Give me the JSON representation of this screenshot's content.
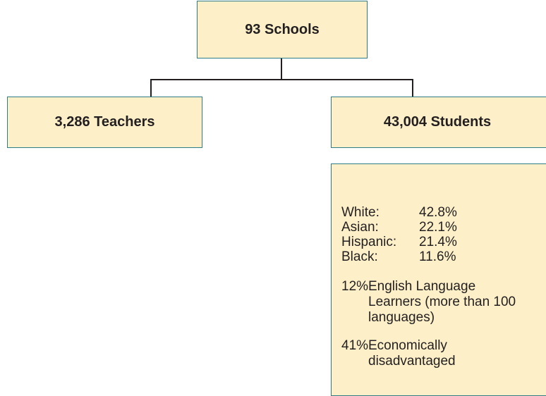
{
  "nodes": [
    {
      "label": "93 Schools"
    },
    {
      "label": "3,286 Teachers"
    },
    {
      "label": "43,004 Students"
    }
  ],
  "details": {
    "demographics": [
      {
        "label": "White:",
        "value": "42.8%"
      },
      {
        "label": "Asian:",
        "value": "22.1%"
      },
      {
        "label": "Hispanic:",
        "value": "21.4%"
      },
      {
        "label": "Black:",
        "value": "11.6%"
      }
    ],
    "notes": [
      {
        "percent": "12%",
        "text": "English Language Learners (more than 100 languages)"
      },
      {
        "percent": "41%",
        "text": "Economically disadvantaged"
      }
    ]
  }
}
